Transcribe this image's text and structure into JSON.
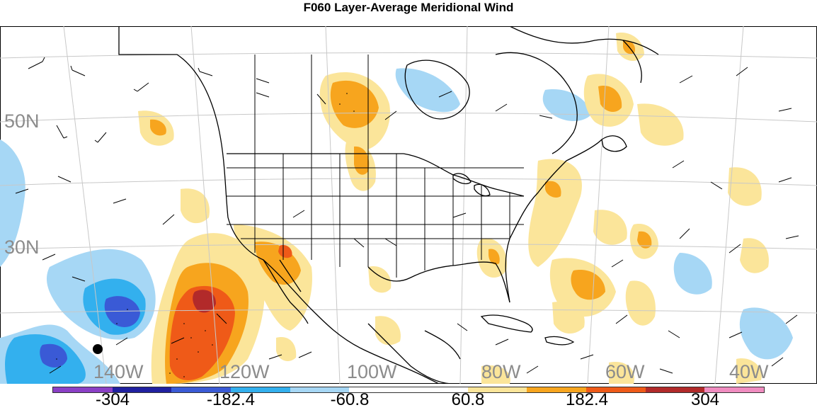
{
  "title": "F060 Layer-Average Meridional Wind",
  "lat_labels": [
    "50N",
    "30N"
  ],
  "lon_labels": [
    "140W",
    "120W",
    "100W",
    "80W",
    "60W",
    "40W"
  ],
  "colorbar": {
    "colors": [
      "#8a3fc6",
      "#2020a0",
      "#3a5ad6",
      "#33b0ee",
      "#a6d7f5",
      "#ffffff",
      "#ffffff",
      "#fbe59a",
      "#f7a51e",
      "#ef5a18",
      "#b22a2a",
      "#f08cc0"
    ],
    "labels": [
      "-304",
      "-182.4",
      "-60.8",
      "60.8",
      "182.4",
      "304"
    ]
  },
  "colors": {
    "land_line": "#000000",
    "grid": "#bdbdbd",
    "light_blue": "#a6d7f5",
    "blue": "#33b0ee",
    "dark_blue": "#3a5ad6",
    "light_yellow": "#fbe59a",
    "orange": "#f7a51e",
    "dark_orange": "#ef5a18",
    "red": "#b22a2a"
  }
}
